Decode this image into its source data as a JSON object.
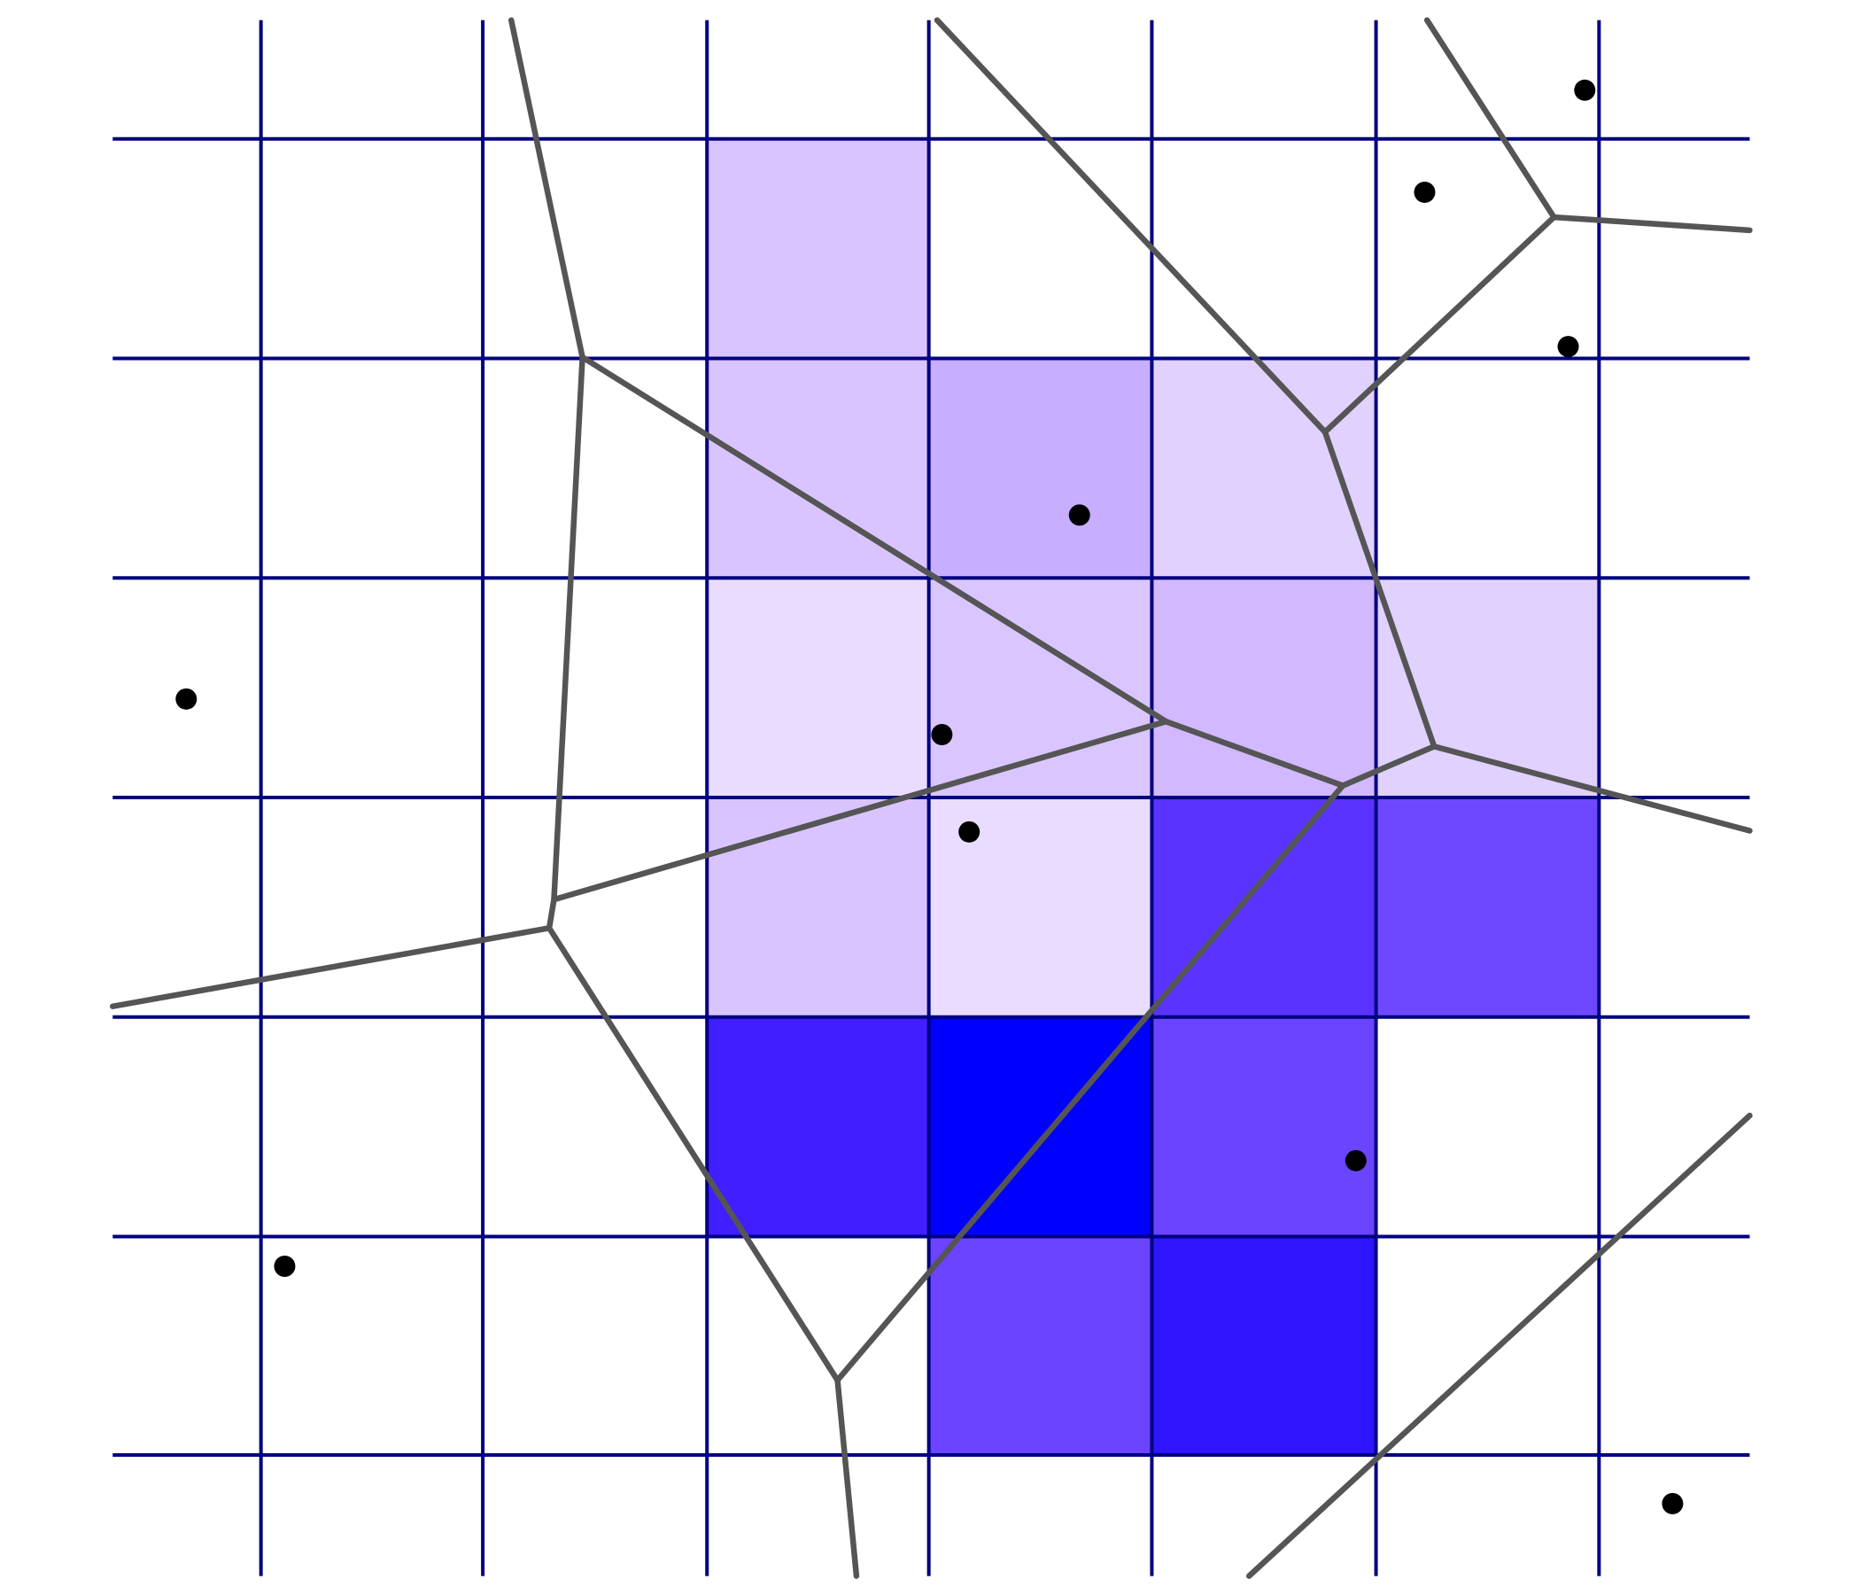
{
  "diagram": {
    "kind": "voronoi-over-grid",
    "colors": {
      "background": "#ffffff",
      "grid_line": "#000080",
      "voronoi_edge": "#555555",
      "site_point": "#000000"
    },
    "shaded_cells": [
      {
        "col": 2,
        "row": 0,
        "fill": "#d9c4ff"
      },
      {
        "col": 2,
        "row": 1,
        "fill": "#d9c4ff"
      },
      {
        "col": 3,
        "row": 1,
        "fill": "#c8aeff"
      },
      {
        "col": 4,
        "row": 1,
        "fill": "#e1d1ff"
      },
      {
        "col": 2,
        "row": 2,
        "fill": "#e9dcff"
      },
      {
        "col": 3,
        "row": 2,
        "fill": "#dac6ff"
      },
      {
        "col": 4,
        "row": 2,
        "fill": "#d2b8ff"
      },
      {
        "col": 5,
        "row": 2,
        "fill": "#e1d1ff"
      },
      {
        "col": 2,
        "row": 3,
        "fill": "#d9c4ff"
      },
      {
        "col": 3,
        "row": 3,
        "fill": "#e9dcff"
      },
      {
        "col": 4,
        "row": 3,
        "fill": "#5a32ff"
      },
      {
        "col": 5,
        "row": 3,
        "fill": "#6e48ff"
      },
      {
        "col": 2,
        "row": 4,
        "fill": "#401eff"
      },
      {
        "col": 3,
        "row": 4,
        "fill": "#0000ff"
      },
      {
        "col": 4,
        "row": 4,
        "fill": "#6a44ff"
      },
      {
        "col": 3,
        "row": 5,
        "fill": "#6a44ff"
      },
      {
        "col": 4,
        "row": 5,
        "fill": "#2e14ff"
      }
    ]
  }
}
